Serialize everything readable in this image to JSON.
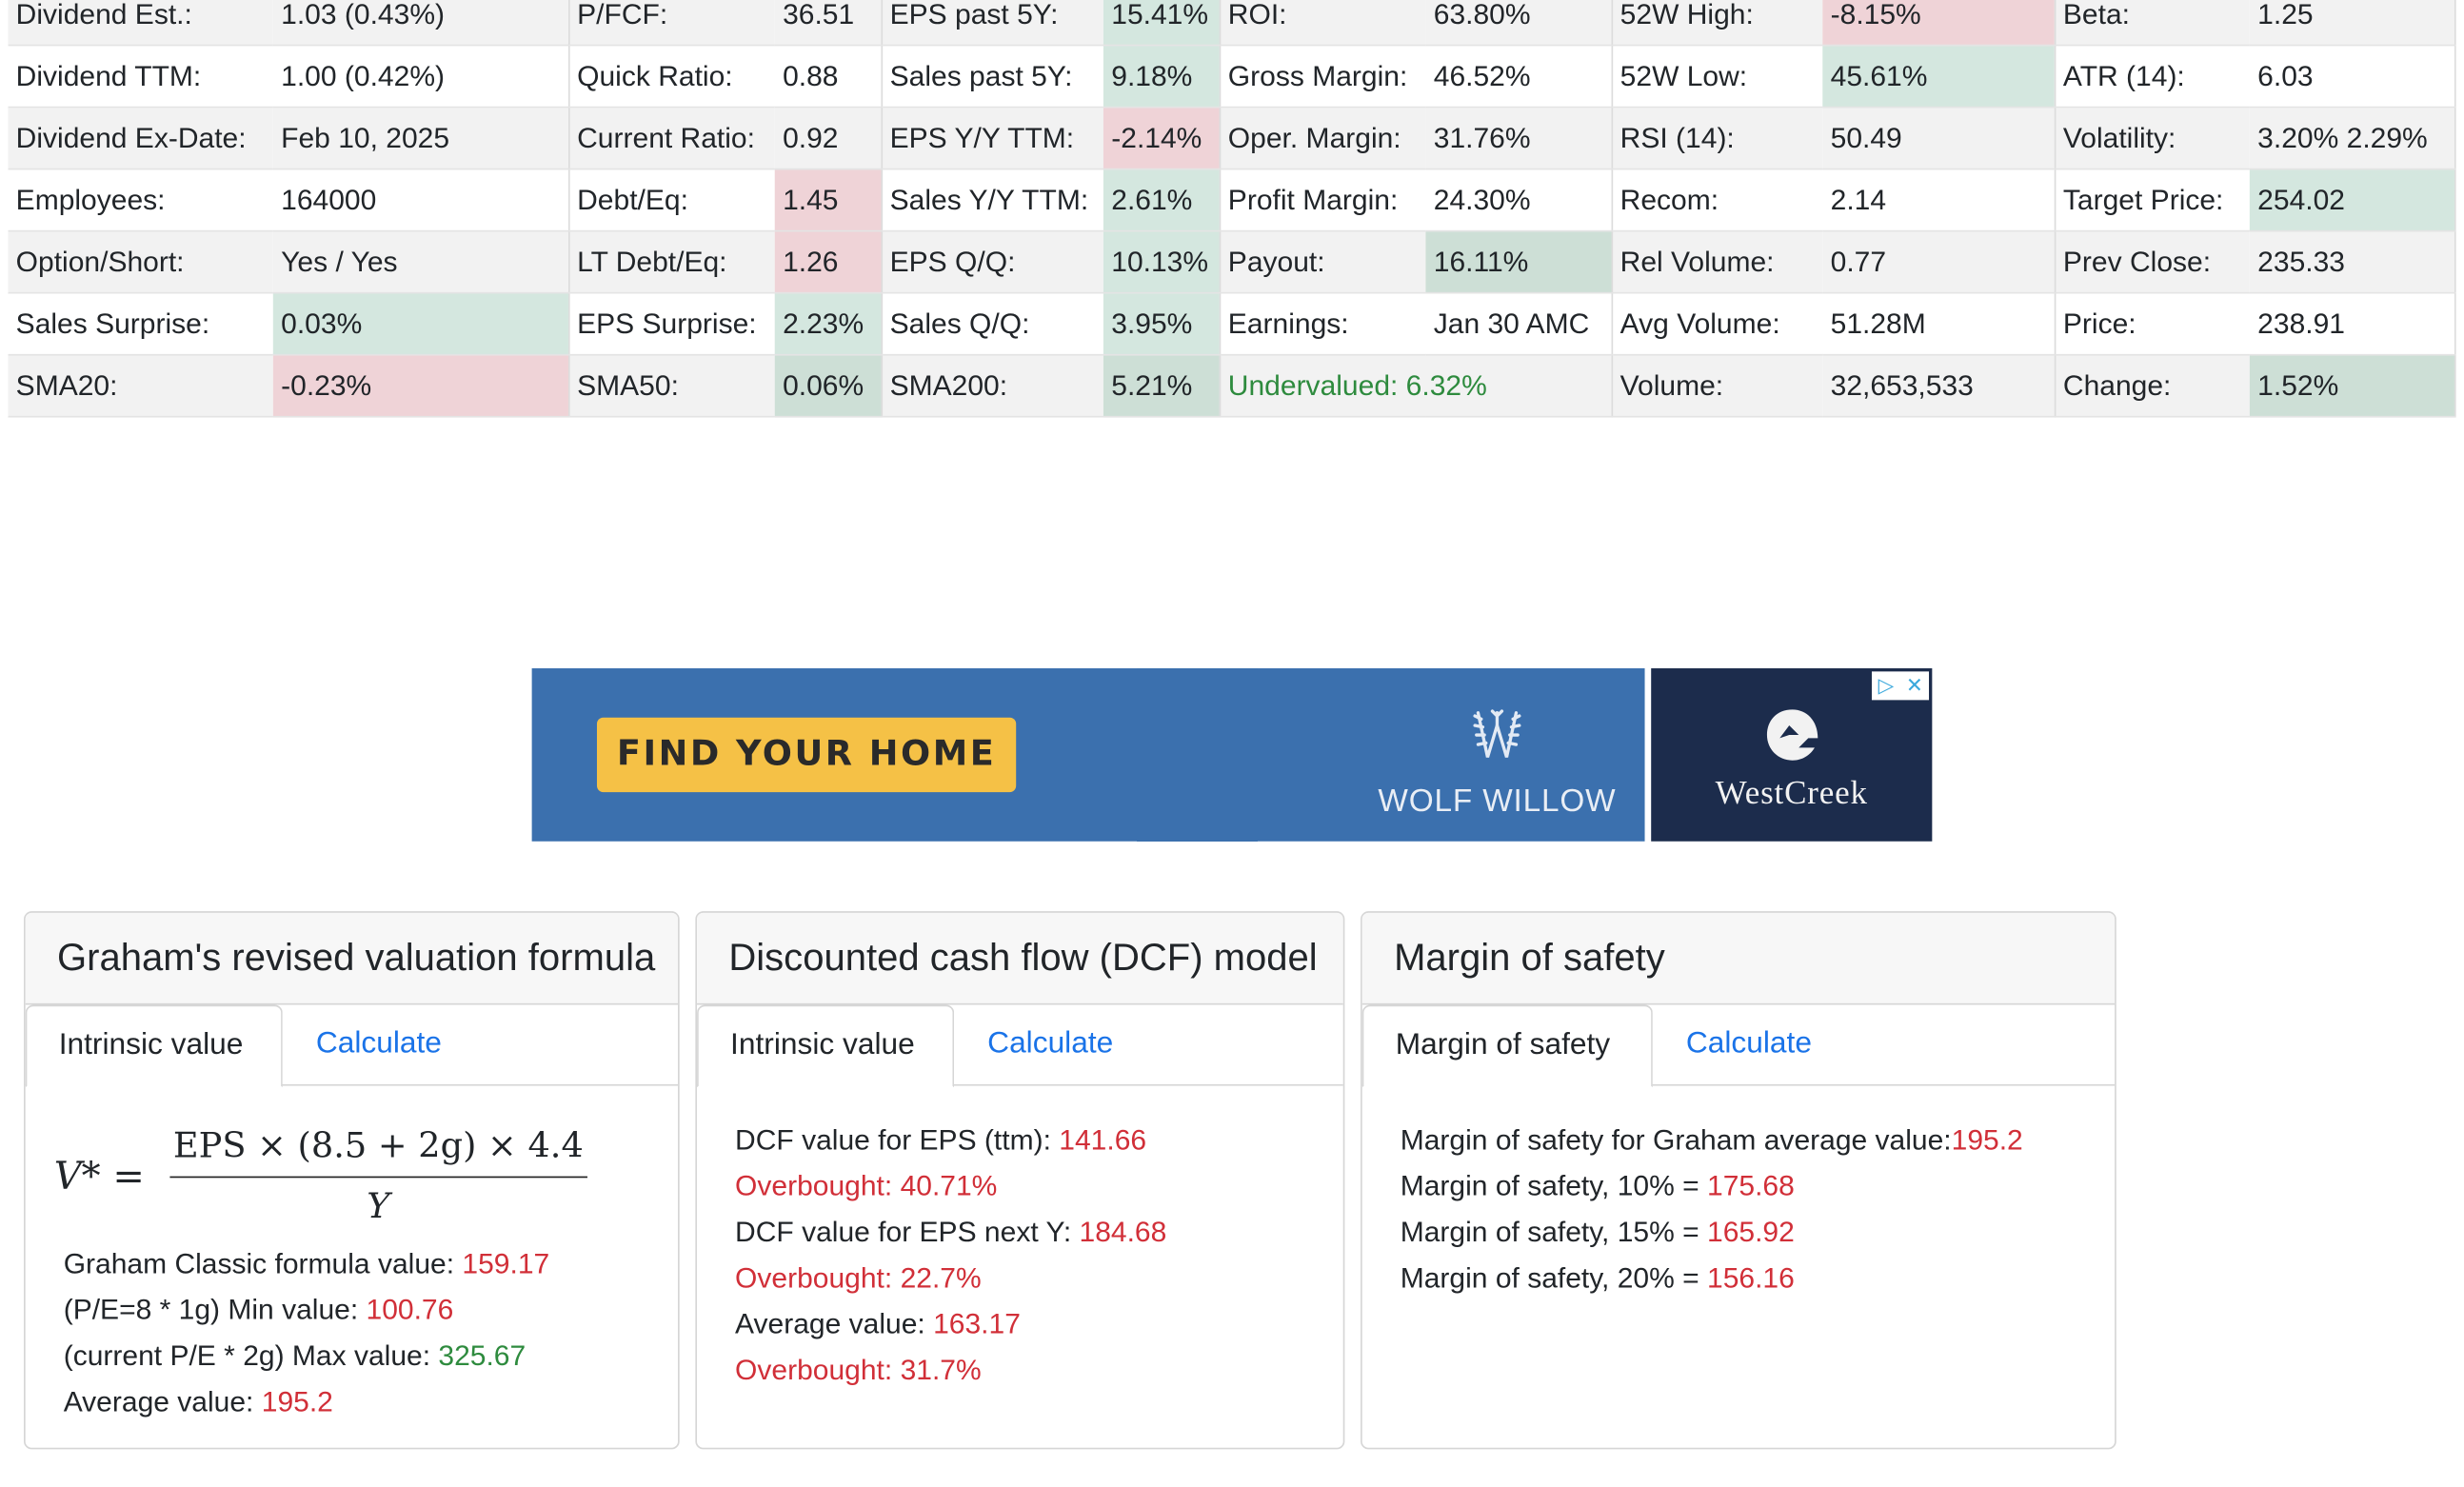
{
  "stats_rows": [
    [
      {
        "label": "Dividend Est.:",
        "value": "1.03 (0.43%)",
        "hl": ""
      },
      {
        "label": "P/FCF:",
        "value": "36.51",
        "hl": ""
      },
      {
        "label": "EPS past 5Y:",
        "value": "15.41%",
        "hl": "pos"
      },
      {
        "label": "ROI:",
        "value": "63.80%",
        "hl": ""
      },
      {
        "label": "52W High:",
        "value": "-8.15%",
        "hl": "neg"
      },
      {
        "label": "Beta:",
        "value": "1.25",
        "hl": ""
      }
    ],
    [
      {
        "label": "Dividend TTM:",
        "value": "1.00 (0.42%)",
        "hl": ""
      },
      {
        "label": "Quick Ratio:",
        "value": "0.88",
        "hl": ""
      },
      {
        "label": "Sales past 5Y:",
        "value": "9.18%",
        "hl": "pos"
      },
      {
        "label": "Gross Margin:",
        "value": "46.52%",
        "hl": ""
      },
      {
        "label": "52W Low:",
        "value": "45.61%",
        "hl": "pos"
      },
      {
        "label": "ATR (14):",
        "value": "6.03",
        "hl": ""
      }
    ],
    [
      {
        "label": "Dividend Ex-Date:",
        "value": "Feb 10, 2025",
        "hl": ""
      },
      {
        "label": "Current Ratio:",
        "value": "0.92",
        "hl": ""
      },
      {
        "label": "EPS Y/Y TTM:",
        "value": "-2.14%",
        "hl": "neg"
      },
      {
        "label": "Oper. Margin:",
        "value": "31.76%",
        "hl": ""
      },
      {
        "label": "RSI (14):",
        "value": "50.49",
        "hl": ""
      },
      {
        "label": "Volatility:",
        "value": "3.20% 2.29%",
        "hl": ""
      }
    ],
    [
      {
        "label": "Employees:",
        "value": "164000",
        "hl": ""
      },
      {
        "label": "Debt/Eq:",
        "value": "1.45",
        "hl": "neg"
      },
      {
        "label": "Sales Y/Y TTM:",
        "value": "2.61%",
        "hl": "pos"
      },
      {
        "label": "Profit Margin:",
        "value": "24.30%",
        "hl": ""
      },
      {
        "label": "Recom:",
        "value": "2.14",
        "hl": ""
      },
      {
        "label": "Target Price:",
        "value": "254.02",
        "hl": "pos"
      }
    ],
    [
      {
        "label": "Option/Short:",
        "value": "Yes / Yes",
        "hl": ""
      },
      {
        "label": "LT Debt/Eq:",
        "value": "1.26",
        "hl": "neg"
      },
      {
        "label": "EPS Q/Q:",
        "value": "10.13%",
        "hl": "pos"
      },
      {
        "label": "Payout:",
        "value": "16.11%",
        "hl": "pos2"
      },
      {
        "label": "Rel Volume:",
        "value": "0.77",
        "hl": ""
      },
      {
        "label": "Prev Close:",
        "value": "235.33",
        "hl": ""
      }
    ],
    [
      {
        "label": "Sales Surprise:",
        "value": "0.03%",
        "hl": "pos"
      },
      {
        "label": "EPS Surprise:",
        "value": "2.23%",
        "hl": "pos"
      },
      {
        "label": "Sales Q/Q:",
        "value": "3.95%",
        "hl": "pos"
      },
      {
        "label": "Earnings:",
        "value": "Jan 30 AMC",
        "hl": ""
      },
      {
        "label": "Avg Volume:",
        "value": "51.28M",
        "hl": ""
      },
      {
        "label": "Price:",
        "value": "238.91",
        "hl": ""
      }
    ],
    [
      {
        "label": "SMA20:",
        "value": "-0.23%",
        "hl": "neg"
      },
      {
        "label": "SMA50:",
        "value": "0.06%",
        "hl": "pos2"
      },
      {
        "label": "SMA200:",
        "value": "5.21%",
        "hl": "pos2"
      },
      {
        "label": "",
        "value": "Undervalued: 6.32%",
        "hl": "span"
      },
      {
        "label": "Volume:",
        "value": "32,653,533",
        "hl": ""
      },
      {
        "label": "Change:",
        "value": "1.52%",
        "hl": "pos2"
      }
    ]
  ],
  "ad": {
    "button_label": "FIND YOUR HOME",
    "brand_left": "WOLF WILLOW",
    "brand_right": "WESTCREEK",
    "brand_right_display": "WestCreek"
  },
  "colors": {
    "red": "#d12f38",
    "green": "#2e8b3e",
    "link": "#1a73e8",
    "pos_bg": "#d4e7df",
    "neg_bg": "#efd3d7"
  },
  "graham": {
    "title": "Graham's revised valuation formula",
    "tab_active": "Intrinsic value",
    "tab_other": "Calculate",
    "formula_lhs": "V* =",
    "formula_num": "EPS × (8.5 + 2g) × 4.4",
    "formula_den": "Y",
    "lines": [
      {
        "label": "Graham Classic formula value: ",
        "value": "159.17",
        "color": "red"
      },
      {
        "label": "(P/E=8 * 1g) Min value: ",
        "value": "100.76",
        "color": "red"
      },
      {
        "label": "(current P/E * 2g) Max value: ",
        "value": "325.67",
        "color": "green"
      },
      {
        "label": "Average value: ",
        "value": "195.2",
        "color": "red"
      }
    ]
  },
  "dcf": {
    "title": "Discounted cash flow (DCF) model",
    "tab_active": "Intrinsic value",
    "tab_other": "Calculate",
    "lines": [
      {
        "label": "DCF value for EPS (ttm): ",
        "value": "141.66"
      },
      {
        "label": "",
        "value": "Overbought: 40.71%"
      },
      {
        "label": "DCF value for EPS next Y: ",
        "value": "184.68"
      },
      {
        "label": "",
        "value": "Overbought: 22.7%"
      },
      {
        "label": "Average value: ",
        "value": "163.17"
      },
      {
        "label": "",
        "value": "Overbought: 31.7%"
      }
    ]
  },
  "mos": {
    "title": "Margin of safety",
    "tab_active": "Margin of safety",
    "tab_other": "Calculate",
    "lines": [
      {
        "label": "Margin of safety for Graham average value:",
        "value": "195.2"
      },
      {
        "label": "Margin of safety, 10% = ",
        "value": "175.68"
      },
      {
        "label": "Margin of safety, 15% = ",
        "value": "165.92"
      },
      {
        "label": "Margin of safety, 20% = ",
        "value": "156.16"
      }
    ]
  }
}
